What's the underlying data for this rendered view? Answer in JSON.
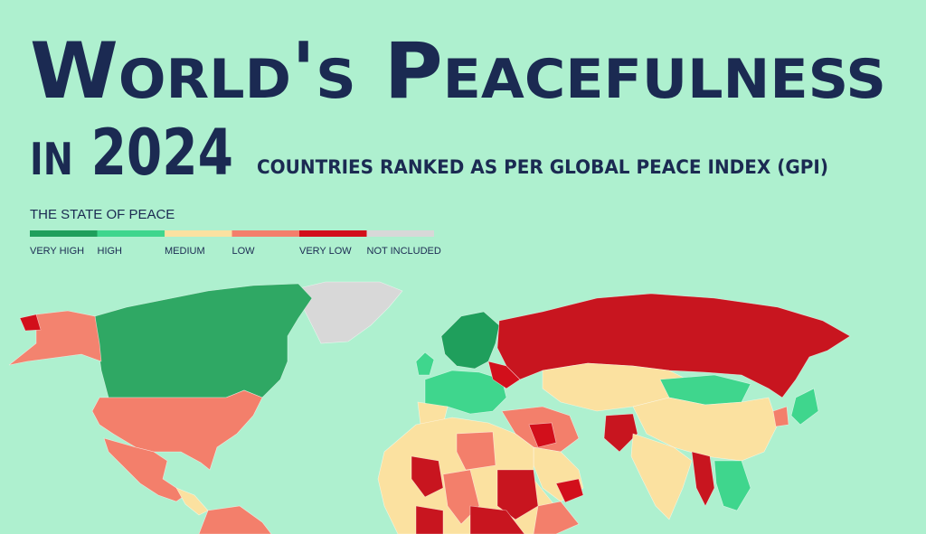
{
  "header": {
    "title": "World's Peacefulness",
    "title_line2": "in 2024",
    "subtitle": "COUNTRIES RANKED AS PER GLOBAL PEACE INDEX (GPI)"
  },
  "legend": {
    "title": "THE STATE OF PEACE",
    "items": [
      {
        "label": "VERY HIGH",
        "color": "#1f9f5c"
      },
      {
        "label": "HIGH",
        "color": "#3fd68d"
      },
      {
        "label": "MEDIUM",
        "color": "#fbe1a0"
      },
      {
        "label": "LOW",
        "color": "#f37f6b"
      },
      {
        "label": "VERY LOW",
        "color": "#d20f1b"
      },
      {
        "label": "NOT INCLUDED",
        "color": "#d8d8d8"
      }
    ]
  }
}
